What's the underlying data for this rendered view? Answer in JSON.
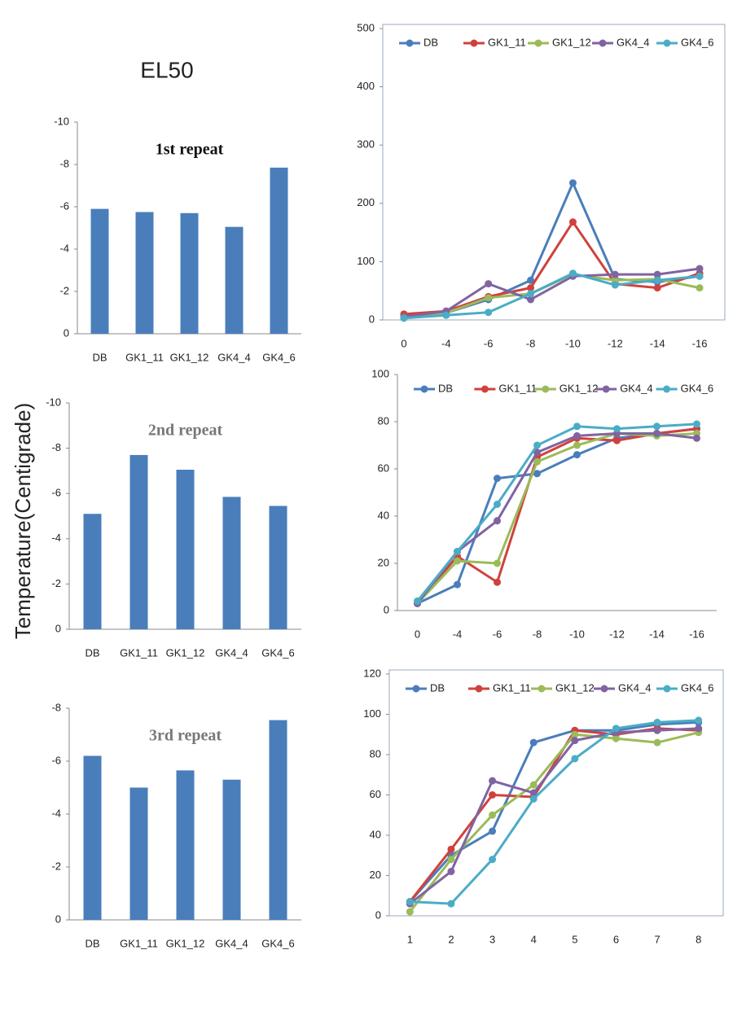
{
  "figure": {
    "title": "EL50",
    "ylabel": "Temperature(Centigrade)"
  },
  "chart_data": [
    {
      "type": "bar",
      "title": "1st repeat",
      "categories": [
        "DB",
        "GK1_11",
        "GK1_12",
        "GK4_4",
        "GK4_6"
      ],
      "values": [
        -5.9,
        -5.75,
        -5.7,
        -5.05,
        -7.85
      ],
      "color": "#4a7ebb",
      "ylim": [
        0,
        -10
      ],
      "yticks": [
        -10,
        -8,
        -6,
        -4,
        -2,
        0
      ]
    },
    {
      "type": "bar",
      "title": "2nd repeat",
      "categories": [
        "DB",
        "GK1_11",
        "GK1_12",
        "GK4_4",
        "GK4_6"
      ],
      "values": [
        -5.1,
        -7.7,
        -7.05,
        -5.85,
        -5.45
      ],
      "color": "#4a7ebb",
      "ylim": [
        0,
        -10
      ],
      "yticks": [
        -10,
        -8,
        -6,
        -4,
        -2,
        0
      ]
    },
    {
      "type": "bar",
      "title": "3rd repeat",
      "categories": [
        "DB",
        "GK1_11",
        "GK1_12",
        "GK4_4",
        "GK4_6"
      ],
      "values": [
        -6.2,
        -5.0,
        -5.65,
        -5.3,
        -7.55
      ],
      "color": "#4a7ebb",
      "ylim": [
        0,
        -8
      ],
      "yticks": [
        -8,
        -6,
        -4,
        -2,
        0
      ]
    },
    {
      "type": "line",
      "categories": [
        "0",
        "-4",
        "-6",
        "-8",
        "-10",
        "-12",
        "-14",
        "-16"
      ],
      "ylim": [
        0,
        500
      ],
      "yticks": [
        0,
        100,
        200,
        300,
        400,
        500
      ],
      "series": [
        {
          "name": "DB",
          "color": "#4a7ebb",
          "values": [
            8,
            12,
            35,
            68,
            235,
            70,
            65,
            75
          ]
        },
        {
          "name": "GK1_11",
          "color": "#d0413d",
          "values": [
            10,
            15,
            40,
            55,
            168,
            62,
            55,
            80
          ]
        },
        {
          "name": "GK1_12",
          "color": "#9bbb59",
          "values": [
            5,
            12,
            38,
            45,
            78,
            68,
            70,
            55
          ]
        },
        {
          "name": "GK4_4",
          "color": "#8064a2",
          "values": [
            5,
            15,
            62,
            35,
            75,
            78,
            78,
            88
          ]
        },
        {
          "name": "GK4_6",
          "color": "#4bacc6",
          "values": [
            3,
            8,
            13,
            45,
            80,
            60,
            68,
            75
          ]
        }
      ]
    },
    {
      "type": "line",
      "categories": [
        "0",
        "-4",
        "-6",
        "-8",
        "-10",
        "-12",
        "-14",
        "-16"
      ],
      "ylim": [
        0,
        100
      ],
      "yticks": [
        0,
        20,
        40,
        60,
        80,
        100
      ],
      "series": [
        {
          "name": "DB",
          "color": "#4a7ebb",
          "values": [
            3,
            11,
            56,
            58,
            66,
            73,
            75,
            77
          ]
        },
        {
          "name": "GK1_11",
          "color": "#d0413d",
          "values": [
            3,
            23,
            12,
            65,
            73,
            72,
            75,
            77
          ]
        },
        {
          "name": "GK1_12",
          "color": "#9bbb59",
          "values": [
            3,
            21,
            20,
            63,
            70,
            75,
            74,
            75
          ]
        },
        {
          "name": "GK4_4",
          "color": "#8064a2",
          "values": [
            3,
            25,
            38,
            67,
            74,
            75,
            75,
            73
          ]
        },
        {
          "name": "GK4_6",
          "color": "#4bacc6",
          "values": [
            4,
            25,
            45,
            70,
            78,
            77,
            78,
            79
          ]
        }
      ]
    },
    {
      "type": "line",
      "categories": [
        "1",
        "2",
        "3",
        "4",
        "5",
        "6",
        "7",
        "8"
      ],
      "ylim": [
        0,
        120
      ],
      "yticks": [
        0,
        20,
        40,
        60,
        80,
        100,
        120
      ],
      "series": [
        {
          "name": "DB",
          "color": "#4a7ebb",
          "values": [
            7,
            30,
            42,
            86,
            92,
            92,
            95,
            96
          ]
        },
        {
          "name": "GK1_11",
          "color": "#d0413d",
          "values": [
            7,
            33,
            60,
            59,
            92,
            90,
            93,
            92
          ]
        },
        {
          "name": "GK1_12",
          "color": "#9bbb59",
          "values": [
            2,
            28,
            50,
            65,
            90,
            88,
            86,
            91
          ]
        },
        {
          "name": "GK4_4",
          "color": "#8064a2",
          "values": [
            6,
            22,
            67,
            61,
            87,
            91,
            92,
            93
          ]
        },
        {
          "name": "GK4_6",
          "color": "#4bacc6",
          "values": [
            7,
            6,
            28,
            58,
            78,
            93,
            96,
            97
          ]
        }
      ]
    }
  ]
}
